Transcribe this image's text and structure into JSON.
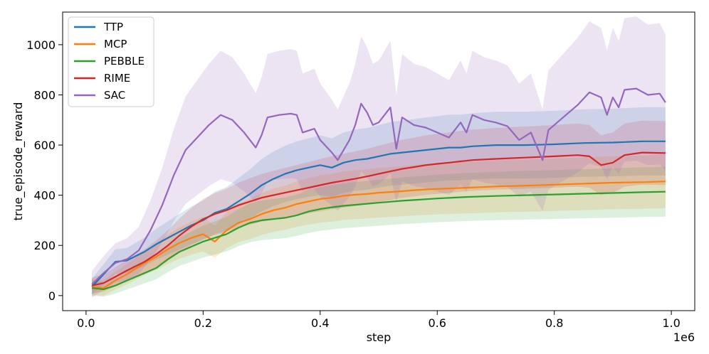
{
  "chart_data": {
    "type": "line",
    "title": "",
    "xlabel": "step",
    "ylabel": "true_episode_reward",
    "x_offset_label": "1e6",
    "xlim": [
      -0.04,
      1.04
    ],
    "ylim": [
      -60,
      1130
    ],
    "x_ticks": [
      0.0,
      0.2,
      0.4,
      0.6,
      0.8,
      1.0
    ],
    "x_tick_labels": [
      "0.0",
      "0.2",
      "0.4",
      "0.6",
      "0.8",
      "1.0"
    ],
    "y_ticks": [
      0,
      200,
      400,
      600,
      800,
      1000
    ],
    "y_tick_labels": [
      "0",
      "200",
      "400",
      "600",
      "800",
      "1000"
    ],
    "legend_position": "top-left",
    "series": [
      {
        "name": "TTP",
        "color": "#1f77b4",
        "points": [
          [
            0.01,
            35
          ],
          [
            0.03,
            85
          ],
          [
            0.05,
            135
          ],
          [
            0.07,
            140
          ],
          [
            0.1,
            175
          ],
          [
            0.12,
            205
          ],
          [
            0.14,
            230
          ],
          [
            0.16,
            255
          ],
          [
            0.18,
            280
          ],
          [
            0.2,
            300
          ],
          [
            0.22,
            330
          ],
          [
            0.24,
            345
          ],
          [
            0.26,
            375
          ],
          [
            0.28,
            405
          ],
          [
            0.3,
            440
          ],
          [
            0.32,
            465
          ],
          [
            0.34,
            485
          ],
          [
            0.36,
            500
          ],
          [
            0.38,
            510
          ],
          [
            0.4,
            520
          ],
          [
            0.42,
            510
          ],
          [
            0.44,
            530
          ],
          [
            0.46,
            540
          ],
          [
            0.48,
            545
          ],
          [
            0.5,
            555
          ],
          [
            0.52,
            565
          ],
          [
            0.54,
            570
          ],
          [
            0.56,
            575
          ],
          [
            0.58,
            580
          ],
          [
            0.6,
            585
          ],
          [
            0.62,
            590
          ],
          [
            0.64,
            590
          ],
          [
            0.66,
            595
          ],
          [
            0.7,
            600
          ],
          [
            0.75,
            600
          ],
          [
            0.8,
            603
          ],
          [
            0.85,
            608
          ],
          [
            0.9,
            610
          ],
          [
            0.95,
            615
          ],
          [
            0.99,
            615
          ]
        ]
      },
      {
        "name": "MCP",
        "color": "#ff7f0e",
        "points": [
          [
            0.01,
            35
          ],
          [
            0.03,
            30
          ],
          [
            0.05,
            60
          ],
          [
            0.07,
            85
          ],
          [
            0.1,
            130
          ],
          [
            0.12,
            155
          ],
          [
            0.14,
            185
          ],
          [
            0.16,
            210
          ],
          [
            0.18,
            230
          ],
          [
            0.2,
            245
          ],
          [
            0.22,
            215
          ],
          [
            0.24,
            260
          ],
          [
            0.26,
            290
          ],
          [
            0.28,
            305
          ],
          [
            0.3,
            325
          ],
          [
            0.32,
            340
          ],
          [
            0.34,
            350
          ],
          [
            0.36,
            365
          ],
          [
            0.38,
            375
          ],
          [
            0.4,
            385
          ],
          [
            0.42,
            390
          ],
          [
            0.44,
            398
          ],
          [
            0.46,
            402
          ],
          [
            0.48,
            405
          ],
          [
            0.5,
            410
          ],
          [
            0.52,
            413
          ],
          [
            0.54,
            416
          ],
          [
            0.56,
            420
          ],
          [
            0.58,
            423
          ],
          [
            0.6,
            425
          ],
          [
            0.65,
            430
          ],
          [
            0.7,
            435
          ],
          [
            0.75,
            438
          ],
          [
            0.8,
            442
          ],
          [
            0.85,
            446
          ],
          [
            0.9,
            450
          ],
          [
            0.95,
            452
          ],
          [
            0.99,
            455
          ]
        ]
      },
      {
        "name": "PEBBLE",
        "color": "#2ca02c",
        "points": [
          [
            0.01,
            30
          ],
          [
            0.03,
            25
          ],
          [
            0.05,
            40
          ],
          [
            0.07,
            60
          ],
          [
            0.1,
            90
          ],
          [
            0.12,
            110
          ],
          [
            0.14,
            145
          ],
          [
            0.16,
            175
          ],
          [
            0.18,
            195
          ],
          [
            0.2,
            215
          ],
          [
            0.22,
            230
          ],
          [
            0.24,
            245
          ],
          [
            0.26,
            270
          ],
          [
            0.28,
            290
          ],
          [
            0.3,
            300
          ],
          [
            0.32,
            305
          ],
          [
            0.34,
            310
          ],
          [
            0.36,
            320
          ],
          [
            0.38,
            335
          ],
          [
            0.4,
            345
          ],
          [
            0.42,
            352
          ],
          [
            0.44,
            358
          ],
          [
            0.46,
            362
          ],
          [
            0.48,
            366
          ],
          [
            0.5,
            370
          ],
          [
            0.52,
            374
          ],
          [
            0.54,
            378
          ],
          [
            0.56,
            381
          ],
          [
            0.58,
            384
          ],
          [
            0.6,
            387
          ],
          [
            0.65,
            393
          ],
          [
            0.7,
            397
          ],
          [
            0.75,
            400
          ],
          [
            0.8,
            403
          ],
          [
            0.85,
            406
          ],
          [
            0.9,
            409
          ],
          [
            0.95,
            412
          ],
          [
            0.99,
            414
          ]
        ]
      },
      {
        "name": "RIME",
        "color": "#d62728",
        "points": [
          [
            0.01,
            40
          ],
          [
            0.03,
            50
          ],
          [
            0.05,
            75
          ],
          [
            0.07,
            100
          ],
          [
            0.1,
            135
          ],
          [
            0.12,
            165
          ],
          [
            0.14,
            200
          ],
          [
            0.16,
            240
          ],
          [
            0.18,
            275
          ],
          [
            0.2,
            305
          ],
          [
            0.22,
            325
          ],
          [
            0.24,
            340
          ],
          [
            0.26,
            360
          ],
          [
            0.28,
            375
          ],
          [
            0.3,
            390
          ],
          [
            0.32,
            400
          ],
          [
            0.34,
            410
          ],
          [
            0.36,
            420
          ],
          [
            0.38,
            430
          ],
          [
            0.4,
            440
          ],
          [
            0.42,
            450
          ],
          [
            0.44,
            458
          ],
          [
            0.46,
            466
          ],
          [
            0.48,
            475
          ],
          [
            0.5,
            485
          ],
          [
            0.52,
            495
          ],
          [
            0.54,
            505
          ],
          [
            0.56,
            512
          ],
          [
            0.58,
            520
          ],
          [
            0.6,
            525
          ],
          [
            0.62,
            530
          ],
          [
            0.64,
            535
          ],
          [
            0.66,
            540
          ],
          [
            0.7,
            545
          ],
          [
            0.75,
            550
          ],
          [
            0.8,
            555
          ],
          [
            0.84,
            560
          ],
          [
            0.86,
            555
          ],
          [
            0.88,
            520
          ],
          [
            0.9,
            530
          ],
          [
            0.92,
            560
          ],
          [
            0.95,
            570
          ],
          [
            0.99,
            568
          ]
        ]
      },
      {
        "name": "SAC",
        "color": "#9467bd",
        "points": [
          [
            0.01,
            45
          ],
          [
            0.03,
            90
          ],
          [
            0.05,
            130
          ],
          [
            0.07,
            145
          ],
          [
            0.09,
            180
          ],
          [
            0.11,
            260
          ],
          [
            0.13,
            360
          ],
          [
            0.15,
            480
          ],
          [
            0.17,
            580
          ],
          [
            0.19,
            630
          ],
          [
            0.21,
            680
          ],
          [
            0.23,
            720
          ],
          [
            0.25,
            700
          ],
          [
            0.27,
            650
          ],
          [
            0.29,
            590
          ],
          [
            0.3,
            640
          ],
          [
            0.31,
            710
          ],
          [
            0.33,
            720
          ],
          [
            0.35,
            725
          ],
          [
            0.36,
            720
          ],
          [
            0.37,
            650
          ],
          [
            0.39,
            665
          ],
          [
            0.4,
            620
          ],
          [
            0.42,
            570
          ],
          [
            0.43,
            540
          ],
          [
            0.45,
            620
          ],
          [
            0.46,
            680
          ],
          [
            0.47,
            765
          ],
          [
            0.48,
            730
          ],
          [
            0.49,
            680
          ],
          [
            0.5,
            690
          ],
          [
            0.52,
            750
          ],
          [
            0.53,
            585
          ],
          [
            0.54,
            710
          ],
          [
            0.56,
            680
          ],
          [
            0.58,
            670
          ],
          [
            0.6,
            650
          ],
          [
            0.62,
            630
          ],
          [
            0.64,
            690
          ],
          [
            0.65,
            650
          ],
          [
            0.66,
            720
          ],
          [
            0.68,
            700
          ],
          [
            0.7,
            690
          ],
          [
            0.72,
            675
          ],
          [
            0.74,
            620
          ],
          [
            0.76,
            650
          ],
          [
            0.78,
            540
          ],
          [
            0.79,
            660
          ],
          [
            0.8,
            680
          ],
          [
            0.82,
            720
          ],
          [
            0.84,
            760
          ],
          [
            0.86,
            810
          ],
          [
            0.88,
            790
          ],
          [
            0.89,
            720
          ],
          [
            0.9,
            790
          ],
          [
            0.91,
            750
          ],
          [
            0.92,
            820
          ],
          [
            0.94,
            825
          ],
          [
            0.96,
            800
          ],
          [
            0.98,
            805
          ],
          [
            0.99,
            770
          ]
        ]
      }
    ]
  }
}
